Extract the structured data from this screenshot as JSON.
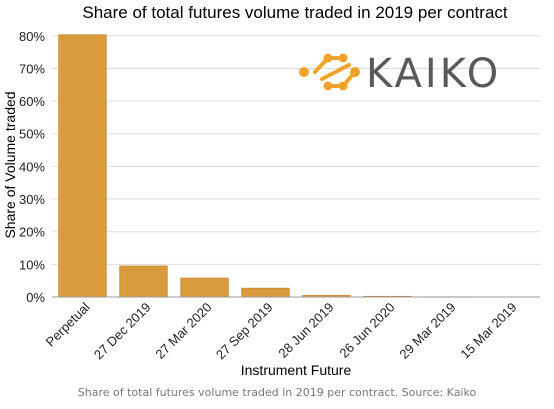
{
  "caption": "Share of total futures volume traded in 2019 per contract. Source: Kaiko",
  "logo": {
    "text": "KAIKO",
    "icon": "kaiko-link-icon",
    "color": "#F0A32B"
  },
  "colors": {
    "bar": "#DA9B3C",
    "bar_edge": "#C98A2E",
    "grid": "#DDDDDD",
    "axis": "#9A9A9A"
  },
  "chart_data": {
    "type": "bar",
    "title": "Share of total futures volume traded in 2019 per contract",
    "xlabel": "Instrument Future",
    "ylabel": "Share of Volume traded",
    "categories": [
      "Perpetual",
      "27 Dec 2019",
      "27 Mar 2020",
      "27 Sep 2019",
      "28 Jun 2019",
      "26 Jun 2020",
      "29 Mar 2019",
      "15 Mar 2019"
    ],
    "values": [
      80.3,
      9.5,
      5.8,
      2.7,
      0.5,
      0.2,
      0.05,
      0.02
    ],
    "ylim": [
      0,
      83
    ],
    "yticks": [
      0,
      10,
      20,
      30,
      40,
      50,
      60,
      70,
      80
    ],
    "ytick_labels": [
      "0%",
      "10%",
      "20%",
      "30%",
      "40%",
      "50%",
      "60%",
      "70%",
      "80%"
    ],
    "grid": "horizontal",
    "legend": "none"
  }
}
